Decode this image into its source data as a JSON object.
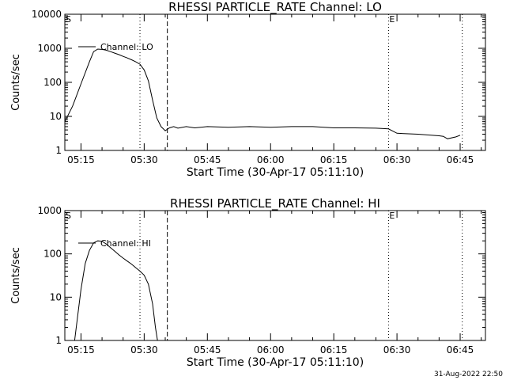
{
  "footer_timestamp": "31-Aug-2022 22:50",
  "chart_data": [
    {
      "type": "line",
      "title": "RHESSI PARTICLE_RATE Channel: LO",
      "xlabel": "Start Time (30-Apr-17 05:11:10)",
      "ylabel": "Counts/sec",
      "y_scale": "log",
      "ylim": [
        1,
        10000
      ],
      "y_ticks": [
        1,
        10,
        100,
        1000,
        10000
      ],
      "y_tick_labels": [
        "1",
        "10",
        "100",
        "1000",
        "10000"
      ],
      "xlim": [
        "05:11:10",
        "06:51:00"
      ],
      "x_ticks": [
        "05:15",
        "05:30",
        "05:45",
        "06:00",
        "06:15",
        "06:30",
        "06:45"
      ],
      "grid": false,
      "legend": {
        "position": "top-left",
        "entries": [
          "Channel: LO"
        ]
      },
      "markers": [
        {
          "time": "05:11:10",
          "style": "dotted",
          "label": "S"
        },
        {
          "time": "05:29:00",
          "style": "dotted",
          "label": ""
        },
        {
          "time": "05:35:30",
          "style": "dashed",
          "label": ""
        },
        {
          "time": "06:28:00",
          "style": "dotted",
          "label": "E"
        },
        {
          "time": "06:45:30",
          "style": "dotted",
          "label": ""
        }
      ],
      "series": [
        {
          "name": "Channel: LO",
          "x": [
            "05:11:10",
            "05:13:00",
            "05:15:00",
            "05:17:00",
            "05:18:00",
            "05:19:00",
            "05:20:00",
            "05:21:00",
            "05:22:00",
            "05:23:00",
            "05:24:00",
            "05:25:00",
            "05:26:00",
            "05:27:00",
            "05:28:00",
            "05:29:00",
            "05:30:00",
            "05:31:00",
            "05:32:00",
            "05:33:00",
            "05:34:00",
            "05:35:00",
            "05:36:00",
            "05:37:00",
            "05:38:00",
            "05:40:00",
            "05:42:00",
            "05:45:00",
            "05:50:00",
            "05:55:00",
            "06:00:00",
            "06:05:00",
            "06:10:00",
            "06:15:00",
            "06:20:00",
            "06:25:00",
            "06:28:00",
            "06:30:00",
            "06:35:00",
            "06:40:00",
            "06:41:00",
            "06:42:00",
            "06:44:00",
            "06:45:00"
          ],
          "values": [
            7,
            20,
            90,
            400,
            800,
            950,
            930,
            880,
            800,
            720,
            650,
            580,
            520,
            460,
            400,
            340,
            230,
            110,
            30,
            9,
            5,
            3.8,
            4.6,
            5,
            4.5,
            5,
            4.6,
            5,
            4.8,
            5,
            4.8,
            5,
            5,
            4.6,
            4.6,
            4.5,
            4.3,
            3.2,
            3,
            2.7,
            2.6,
            2.2,
            2.5,
            2.8
          ]
        }
      ]
    },
    {
      "type": "line",
      "title": "RHESSI PARTICLE_RATE Channel: HI",
      "xlabel": "Start Time (30-Apr-17 05:11:10)",
      "ylabel": "Counts/sec",
      "y_scale": "log",
      "ylim": [
        1,
        1000
      ],
      "y_ticks": [
        1,
        10,
        100,
        1000
      ],
      "y_tick_labels": [
        "1",
        "10",
        "100",
        "1000"
      ],
      "xlim": [
        "05:11:10",
        "06:51:00"
      ],
      "x_ticks": [
        "05:15",
        "05:30",
        "05:45",
        "06:00",
        "06:15",
        "06:30",
        "06:45"
      ],
      "grid": false,
      "legend": {
        "position": "top-left",
        "entries": [
          "Channel: HI"
        ]
      },
      "markers": [
        {
          "time": "05:11:10",
          "style": "dotted",
          "label": "S"
        },
        {
          "time": "05:29:00",
          "style": "dotted",
          "label": ""
        },
        {
          "time": "05:35:30",
          "style": "dashed",
          "label": ""
        },
        {
          "time": "06:28:00",
          "style": "dotted",
          "label": "E"
        },
        {
          "time": "06:45:30",
          "style": "dotted",
          "label": ""
        }
      ],
      "series": [
        {
          "name": "Channel: HI",
          "x": [
            "05:13:30",
            "05:14:00",
            "05:15:00",
            "05:16:00",
            "05:17:00",
            "05:18:00",
            "05:19:00",
            "05:20:00",
            "05:21:00",
            "05:22:00",
            "05:23:00",
            "05:24:00",
            "05:25:00",
            "05:26:00",
            "05:27:00",
            "05:28:00",
            "05:29:00",
            "05:30:00",
            "05:31:00",
            "05:32:00",
            "05:32:40",
            "05:33:10"
          ],
          "values": [
            1,
            2.5,
            15,
            60,
            120,
            180,
            200,
            195,
            170,
            140,
            115,
            95,
            80,
            68,
            58,
            48,
            40,
            32,
            20,
            7,
            2,
            1
          ]
        }
      ]
    }
  ]
}
